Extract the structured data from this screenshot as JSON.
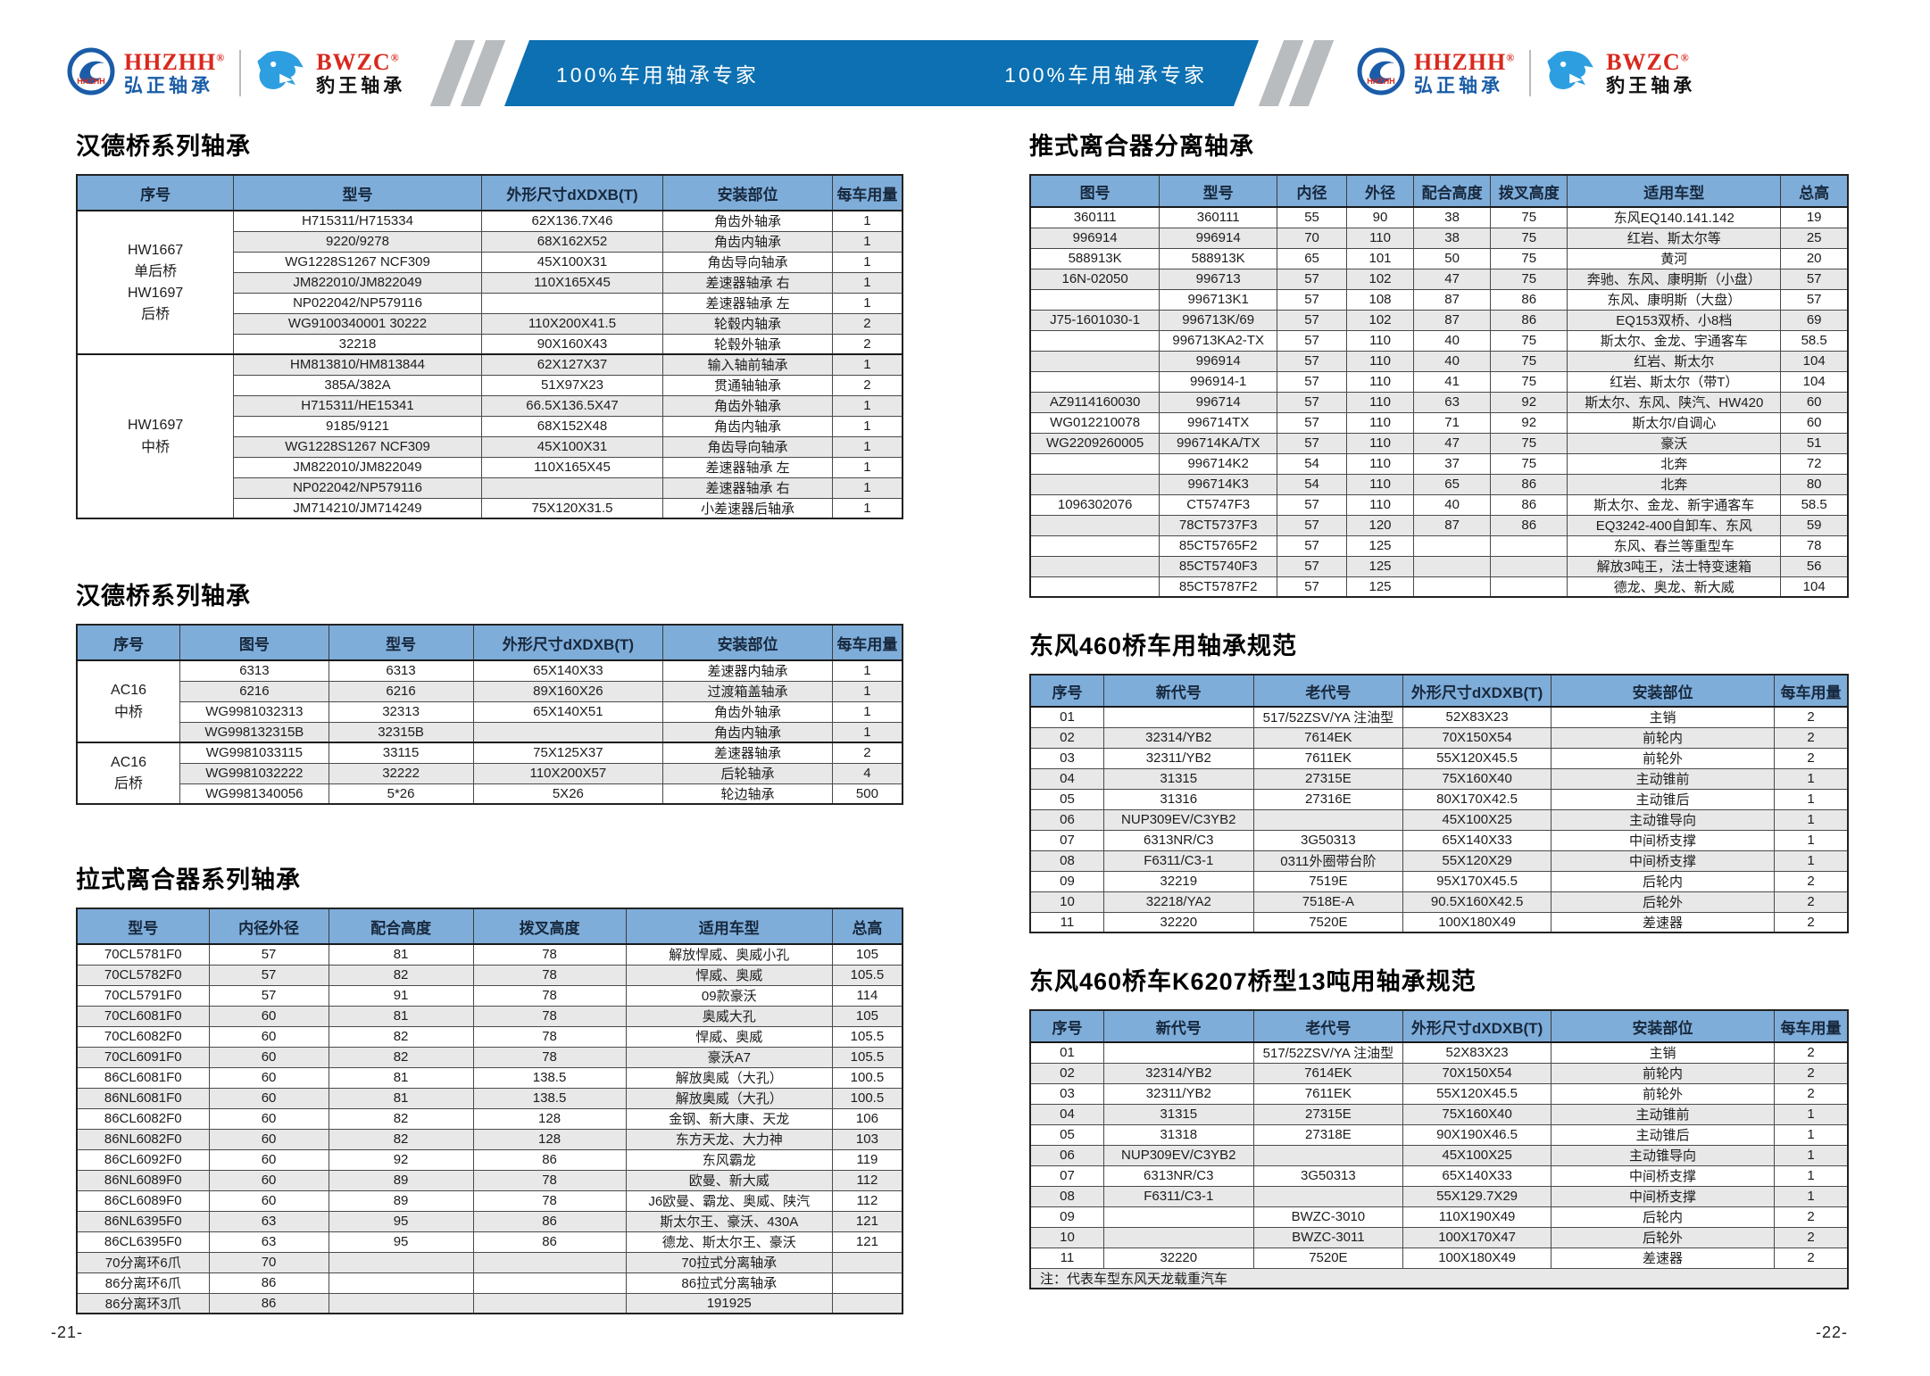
{
  "header": {
    "banner_left": "100%车用轴承专家",
    "banner_right": "100%车用轴承专家",
    "brands": [
      {
        "abbr": "HHZHH",
        "reg": "®",
        "name": "弘正轴承",
        "logo_label": "HHZHH"
      },
      {
        "abbr": "BWZC",
        "reg": "®",
        "name": "豹王轴承"
      }
    ]
  },
  "colors": {
    "banner": "#0c70b2",
    "table_header": "#7fadd9",
    "row_alt": "#e8e8e8",
    "brand_red": "#d8281e",
    "brand_blue": "#1a5ca8",
    "leopard": "#2d9fe0"
  },
  "footer": {
    "left_page": "-21-",
    "right_page": "-22-"
  },
  "tables": {
    "hande1": {
      "title": "汉德桥系列轴承",
      "columns": [
        "序号",
        "型号",
        "外形尺寸dXDXB(T)",
        "安装部位",
        "每车用量"
      ],
      "widths": [
        19,
        30,
        22,
        20.5,
        8.5
      ],
      "groups": [
        {
          "label": "HW1667\n单后桥\nHW1697\n后桥",
          "span": 7
        },
        {
          "label": "HW1697\n中桥",
          "span": 8
        }
      ],
      "rows": [
        [
          "H715311/H715334",
          "62X136.7X46",
          "角齿外轴承",
          "1"
        ],
        [
          "9220/9278",
          "68X162X52",
          "角齿内轴承",
          "1"
        ],
        [
          "WG1228S1267 NCF309",
          "45X100X31",
          "角齿导向轴承",
          "1"
        ],
        [
          "JM822010/JM822049",
          "110X165X45",
          "差速器轴承 右",
          "1"
        ],
        [
          "NP022042/NP579116",
          "",
          "差速器轴承 左",
          "1"
        ],
        [
          "WG9100340001 30222",
          "110X200X41.5",
          "轮毂内轴承",
          "2"
        ],
        [
          "32218",
          "90X160X43",
          "轮毂外轴承",
          "2"
        ],
        [
          "HM813810/HM813844",
          "62X127X37",
          "输入轴前轴承",
          "1"
        ],
        [
          "385A/382A",
          "51X97X23",
          "贯通轴轴承",
          "2"
        ],
        [
          "H715311/HE15341",
          "66.5X136.5X47",
          "角齿外轴承",
          "1"
        ],
        [
          "9185/9121",
          "68X152X48",
          "角齿内轴承",
          "1"
        ],
        [
          "WG1228S1267 NCF309",
          "45X100X31",
          "角齿导向轴承",
          "1"
        ],
        [
          "JM822010/JM822049",
          "110X165X45",
          "差速器轴承 左",
          "1"
        ],
        [
          "NP022042/NP579116",
          "",
          "差速器轴承 右",
          "1"
        ],
        [
          "JM714210/JM714249",
          "75X120X31.5",
          "小差速器后轴承",
          "1"
        ]
      ]
    },
    "hande2": {
      "title": "汉德桥系列轴承",
      "columns": [
        "序号",
        "图号",
        "型号",
        "外形尺寸dXDXB(T)",
        "安装部位",
        "每车用量"
      ],
      "widths": [
        12.5,
        18,
        17.5,
        23,
        20.5,
        8.5
      ],
      "groups": [
        {
          "label": "AC16\n中桥",
          "span": 4
        },
        {
          "label": "AC16\n后桥",
          "span": 3
        }
      ],
      "rows": [
        [
          "6313",
          "6313",
          "65X140X33",
          "差速器内轴承",
          "1"
        ],
        [
          "6216",
          "6216",
          "89X160X26",
          "过渡箱盖轴承",
          "1"
        ],
        [
          "WG9981032313",
          "32313",
          "65X140X51",
          "角齿外轴承",
          "1"
        ],
        [
          "WG998132315B",
          "32315B",
          "",
          "角齿内轴承",
          "1"
        ],
        [
          "WG9981033115",
          "33115",
          "75X125X37",
          "差速器轴承",
          "2"
        ],
        [
          "WG9981032222",
          "32222",
          "110X200X57",
          "后轮轴承",
          "4"
        ],
        [
          "WG9981340056",
          "5*26",
          "5X26",
          "轮边轴承",
          "500"
        ]
      ]
    },
    "lashi": {
      "title": "拉式离合器系列轴承",
      "columns": [
        "型号",
        "内径外径",
        "配合高度",
        "拨叉高度",
        "适用车型",
        "总高"
      ],
      "widths": [
        16,
        14.5,
        17.5,
        18.5,
        25,
        8.5
      ],
      "rows": [
        [
          "70CL5781F0",
          "57",
          "81",
          "78",
          "解放悍威、奥威小孔",
          "105"
        ],
        [
          "70CL5782F0",
          "57",
          "82",
          "78",
          "悍威、奥威",
          "105.5"
        ],
        [
          "70CL5791F0",
          "57",
          "91",
          "78",
          "09款豪沃",
          "114"
        ],
        [
          "70CL6081F0",
          "60",
          "81",
          "78",
          "奥威大孔",
          "105"
        ],
        [
          "70CL6082F0",
          "60",
          "82",
          "78",
          "悍威、奥威",
          "105.5"
        ],
        [
          "70CL6091F0",
          "60",
          "82",
          "78",
          "豪沃A7",
          "105.5"
        ],
        [
          "86CL6081F0",
          "60",
          "81",
          "138.5",
          "解放奥威（大孔）",
          "100.5"
        ],
        [
          "86NL6081F0",
          "60",
          "81",
          "138.5",
          "解放奥威（大孔）",
          "100.5"
        ],
        [
          "86CL6082F0",
          "60",
          "82",
          "128",
          "金钢、新大康、天龙",
          "106"
        ],
        [
          "86NL6082F0",
          "60",
          "82",
          "128",
          "东方天龙、大力神",
          "103"
        ],
        [
          "86CL6092F0",
          "60",
          "92",
          "86",
          "东风霸龙",
          "119"
        ],
        [
          "86NL6089F0",
          "60",
          "89",
          "78",
          "欧曼、新大威",
          "112"
        ],
        [
          "86CL6089F0",
          "60",
          "89",
          "78",
          "J6欧曼、霸龙、奥威、陕汽",
          "112"
        ],
        [
          "86NL6395F0",
          "63",
          "95",
          "86",
          "斯太尔王、豪沃、430A",
          "121"
        ],
        [
          "86CL6395F0",
          "63",
          "95",
          "86",
          "德龙、斯太尔王、豪沃",
          "121"
        ],
        [
          "70分离环6爪",
          "70",
          "",
          "",
          "70拉式分离轴承",
          ""
        ],
        [
          "86分离环6爪",
          "86",
          "",
          "",
          "86拉式分离轴承",
          ""
        ],
        [
          "86分离环3爪",
          "86",
          "",
          "",
          "191925",
          ""
        ]
      ]
    },
    "tuishi": {
      "title": "推式离合器分离轴承",
      "columns": [
        "图号",
        "型号",
        "内径",
        "外径",
        "配合高度",
        "拨叉高度",
        "适用车型",
        "总高"
      ],
      "widths": [
        15.8,
        14.4,
        8.5,
        8.2,
        9.4,
        9.4,
        26.1,
        8.2
      ],
      "rows": [
        [
          "360111",
          "360111",
          "55",
          "90",
          "38",
          "75",
          "东风EQ140.141.142",
          "19"
        ],
        [
          "996914",
          "996914",
          "70",
          "110",
          "38",
          "75",
          "红岩、斯太尔等",
          "25"
        ],
        [
          "588913K",
          "588913K",
          "65",
          "101",
          "50",
          "75",
          "黄河",
          "20"
        ],
        [
          "16N-02050",
          "996713",
          "57",
          "102",
          "47",
          "75",
          "奔驰、东风、康明斯（小盘）",
          "57"
        ],
        [
          "",
          "996713K1",
          "57",
          "108",
          "87",
          "86",
          "东风、康明斯（大盘）",
          "57"
        ],
        [
          "J75-1601030-1",
          "996713K/69",
          "57",
          "102",
          "87",
          "86",
          "EQ153双桥、小8档",
          "69"
        ],
        [
          "",
          "996713KA2-TX",
          "57",
          "110",
          "40",
          "75",
          "斯太尔、金龙、宇通客车",
          "58.5"
        ],
        [
          "",
          "996914",
          "57",
          "110",
          "40",
          "75",
          "红岩、斯太尔",
          "104"
        ],
        [
          "",
          "996914-1",
          "57",
          "110",
          "41",
          "75",
          "红岩、斯太尔（带T）",
          "104"
        ],
        [
          "AZ9114160030",
          "996714",
          "57",
          "110",
          "63",
          "92",
          "斯太尔、东风、陕汽、HW420",
          "60"
        ],
        [
          "WG012210078",
          "996714TX",
          "57",
          "110",
          "71",
          "92",
          "斯太尔/自调心",
          "60"
        ],
        [
          "WG2209260005",
          "996714KA/TX",
          "57",
          "110",
          "47",
          "75",
          "豪沃",
          "51"
        ],
        [
          "",
          "996714K2",
          "54",
          "110",
          "37",
          "75",
          "北奔",
          "72"
        ],
        [
          "",
          "996714K3",
          "54",
          "110",
          "65",
          "86",
          "北奔",
          "80"
        ],
        [
          "1096302076",
          "CT5747F3",
          "57",
          "110",
          "40",
          "86",
          "斯太尔、金龙、新宇通客车",
          "58.5"
        ],
        [
          "",
          "78CT5737F3",
          "57",
          "120",
          "87",
          "86",
          "EQ3242-400自卸车、东风",
          "59"
        ],
        [
          "",
          "85CT5765F2",
          "57",
          "125",
          "",
          "",
          "东风、春兰等重型车",
          "78"
        ],
        [
          "",
          "85CT5740F3",
          "57",
          "125",
          "",
          "",
          "解放3吨王，法士特变速箱",
          "56"
        ],
        [
          "",
          "85CT5787F2",
          "57",
          "125",
          "",
          "",
          "德龙、奥龙、新大威",
          "104"
        ]
      ]
    },
    "df460": {
      "title": "东风460桥车用轴承规范",
      "columns": [
        "序号",
        "新代号",
        "老代号",
        "外形尺寸dXDXB(T)",
        "安装部位",
        "每车用量"
      ],
      "widths": [
        9,
        18.3,
        18.3,
        18.1,
        27.3,
        9
      ],
      "rows": [
        [
          "01",
          "",
          "517/52ZSV/YA 注油型",
          "52X83X23",
          "主销",
          "2"
        ],
        [
          "02",
          "32314/YB2",
          "7614EK",
          "70X150X54",
          "前轮内",
          "2"
        ],
        [
          "03",
          "32311/YB2",
          "7611EK",
          "55X120X45.5",
          "前轮外",
          "2"
        ],
        [
          "04",
          "31315",
          "27315E",
          "75X160X40",
          "主动锥前",
          "1"
        ],
        [
          "05",
          "31316",
          "27316E",
          "80X170X42.5",
          "主动锥后",
          "1"
        ],
        [
          "06",
          "NUP309EV/C3YB2",
          "",
          "45X100X25",
          "主动锥导向",
          "1"
        ],
        [
          "07",
          "6313NR/C3",
          "3G50313",
          "65X140X33",
          "中间桥支撑",
          "1"
        ],
        [
          "08",
          "F6311/C3-1",
          "0311外圈带台阶",
          "55X120X29",
          "中间桥支撑",
          "1"
        ],
        [
          "09",
          "32219",
          "7519E",
          "95X170X45.5",
          "后轮内",
          "2"
        ],
        [
          "10",
          "32218/YA2",
          "7518E-A",
          "90.5X160X42.5",
          "后轮外",
          "2"
        ],
        [
          "11",
          "32220",
          "7520E",
          "100X180X49",
          "差速器",
          "2"
        ]
      ]
    },
    "dfk6207": {
      "title": "东风460桥车K6207桥型13吨用轴承规范",
      "columns": [
        "序号",
        "新代号",
        "老代号",
        "外形尺寸dXDXB(T)",
        "安装部位",
        "每车用量"
      ],
      "widths": [
        9,
        18.3,
        18.3,
        18.1,
        27.3,
        9
      ],
      "note": "注：代表车型东风天龙载重汽车",
      "rows": [
        [
          "01",
          "",
          "517/52ZSV/YA 注油型",
          "52X83X23",
          "主销",
          "2"
        ],
        [
          "02",
          "32314/YB2",
          "7614EK",
          "70X150X54",
          "前轮内",
          "2"
        ],
        [
          "03",
          "32311/YB2",
          "7611EK",
          "55X120X45.5",
          "前轮外",
          "2"
        ],
        [
          "04",
          "31315",
          "27315E",
          "75X160X40",
          "主动锥前",
          "1"
        ],
        [
          "05",
          "31318",
          "27318E",
          "90X190X46.5",
          "主动锥后",
          "1"
        ],
        [
          "06",
          "NUP309EV/C3YB2",
          "",
          "45X100X25",
          "主动锥导向",
          "1"
        ],
        [
          "07",
          "6313NR/C3",
          "3G50313",
          "65X140X33",
          "中间桥支撑",
          "1"
        ],
        [
          "08",
          "F6311/C3-1",
          "",
          "55X129.7X29",
          "中间桥支撑",
          "1"
        ],
        [
          "09",
          "",
          "BWZC-3010",
          "110X190X49",
          "后轮内",
          "2"
        ],
        [
          "10",
          "",
          "BWZC-3011",
          "100X170X47",
          "后轮外",
          "2"
        ],
        [
          "11",
          "32220",
          "7520E",
          "100X180X49",
          "差速器",
          "2"
        ]
      ]
    }
  }
}
